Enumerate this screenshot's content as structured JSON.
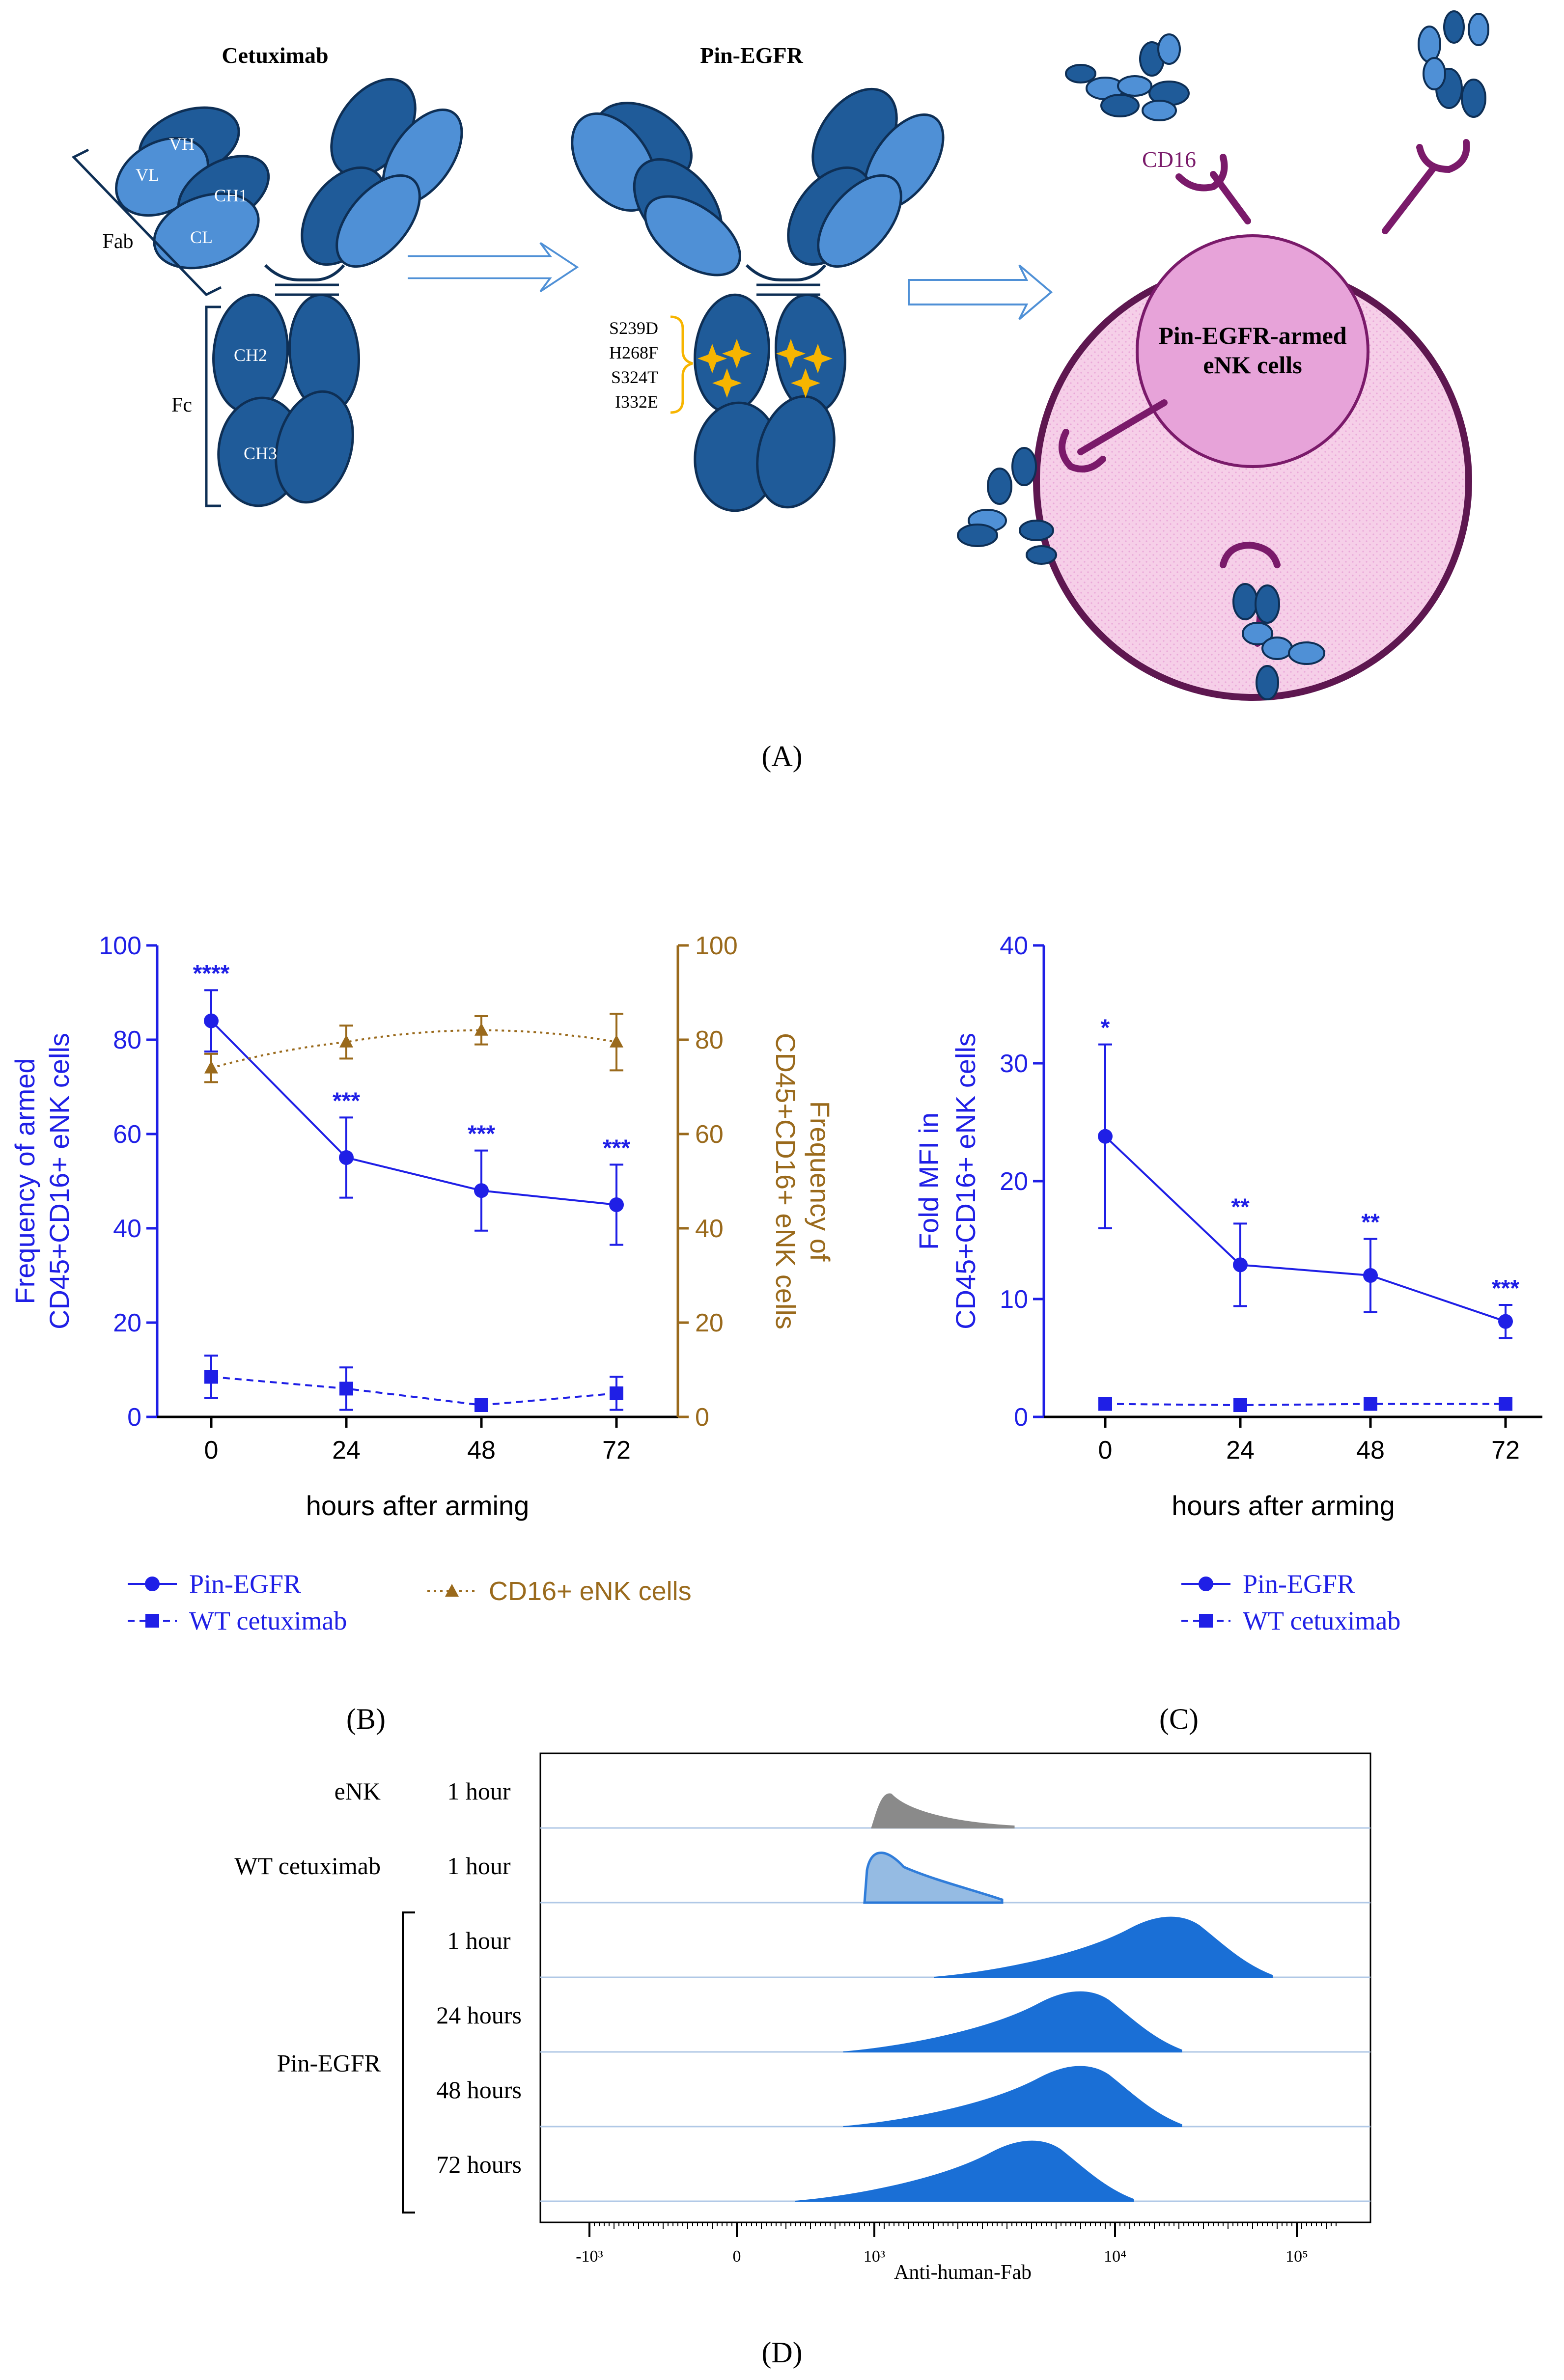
{
  "colors": {
    "blue": "#1f1fe6",
    "brown": "#9a6a1c",
    "ab_dark": "#1f5b99",
    "ab_light": "#4f90d6",
    "ab_outline": "#0e2f55",
    "purple": "#7a1a6a",
    "cell_outer": "#f6cfe8",
    "cell_inner": "#e7a3d9",
    "star": "#f7b500",
    "hist_gray": "#8a8a8a",
    "hist_lightblue": "#8ab4e0",
    "hist_blue": "#1a6fd6"
  },
  "panel_a": {
    "title_cetuximab": "Cetuximab",
    "title_pin": "Pin-EGFR",
    "domain_vh": "VH",
    "domain_vl": "VL",
    "domain_ch1": "CH1",
    "domain_cl": "CL",
    "domain_ch2": "CH2",
    "domain_ch3": "CH3",
    "bracket_fab": "Fab",
    "bracket_fc": "Fc",
    "mutations": [
      "S239D",
      "H268F",
      "S324T",
      "I332E"
    ],
    "receptor_label": "CD16",
    "cell_label_line1": "Pin-EGFR-armed",
    "cell_label_line2": "eNK cells",
    "panel_label": "(A)"
  },
  "chart_data": [
    {
      "panel": "(B)",
      "type": "line",
      "x": [
        0,
        24,
        48,
        72
      ],
      "xticks": [
        "0",
        "24",
        "48",
        "72"
      ],
      "xlabel": "hours after arming",
      "ylabel_left_line1": "Frequency of armed",
      "ylabel_left_line2": "CD45+CD16+ eNK cells",
      "ylabel_right_line1": "Frequency of",
      "ylabel_right_line2": "CD45+CD16+ eNK cells",
      "ylim": [
        0,
        100
      ],
      "yticks": [
        "0",
        "20",
        "40",
        "60",
        "80",
        "100"
      ],
      "series": [
        {
          "name": "Pin-EGFR",
          "axis": "left",
          "values": [
            84,
            55,
            48,
            45
          ],
          "err": [
            6.5,
            8.5,
            8.5,
            8.5
          ],
          "marker": "circle",
          "line": "solid",
          "significance": [
            "****",
            "***",
            "***",
            "***"
          ]
        },
        {
          "name": "WT cetuximab",
          "axis": "left",
          "values": [
            8.5,
            6,
            2.5,
            5
          ],
          "err": [
            4.5,
            4.5,
            0.8,
            3.5
          ],
          "marker": "square",
          "line": "dashed",
          "significance": [
            "",
            "",
            "",
            ""
          ]
        },
        {
          "name": "CD16+ eNK cells",
          "axis": "right",
          "values": [
            74,
            79.5,
            82,
            79.5
          ],
          "err": [
            3,
            3.5,
            3,
            6
          ],
          "marker": "triangle",
          "line": "dotted",
          "significance": [
            "",
            "",
            "",
            ""
          ]
        }
      ]
    },
    {
      "panel": "(C)",
      "type": "line",
      "x": [
        0,
        24,
        48,
        72
      ],
      "xticks": [
        "0",
        "24",
        "48",
        "72"
      ],
      "xlabel": "hours after arming",
      "ylabel_line1": "Fold MFI in",
      "ylabel_line2": "CD45+CD16+ eNK cells",
      "ylim": [
        0,
        40
      ],
      "yticks": [
        "0",
        "10",
        "20",
        "30",
        "40"
      ],
      "series": [
        {
          "name": "Pin-EGFR",
          "values": [
            23.8,
            12.9,
            12,
            8.1
          ],
          "err": [
            7.8,
            3.5,
            3.1,
            1.4
          ],
          "marker": "circle",
          "line": "solid",
          "significance": [
            "*",
            "**",
            "**",
            "***"
          ]
        },
        {
          "name": "WT cetuximab",
          "values": [
            1.1,
            1.0,
            1.1,
            1.1
          ],
          "err": [
            0,
            0,
            0,
            0
          ],
          "marker": "square",
          "line": "dashed",
          "significance": [
            "",
            "",
            "",
            ""
          ]
        }
      ]
    },
    {
      "panel": "(D)",
      "type": "area",
      "title": "",
      "xlabel": "Anti-human-Fab",
      "xticks": [
        "-10³",
        "0",
        "10³",
        "10⁴",
        "10⁵"
      ],
      "group_label": "Pin-EGFR",
      "rows": [
        {
          "sample": "eNK",
          "time": "1 hour",
          "color_key": "hist_gray",
          "mode_log10": 3.05,
          "peak": 0.95
        },
        {
          "sample": "WT cetuximab",
          "time": "1 hour",
          "color_key": "hist_lightblue",
          "mode_log10": 3.0,
          "peak": 1.0
        },
        {
          "sample": "",
          "time": "1 hour",
          "color_key": "hist_blue",
          "mode_log10": 4.3,
          "peak": 1.0
        },
        {
          "sample": "",
          "time": "24 hours",
          "color_key": "hist_blue",
          "mode_log10": 3.85,
          "peak": 1.0
        },
        {
          "sample": "",
          "time": "48 hours",
          "color_key": "hist_blue",
          "mode_log10": 3.85,
          "peak": 1.0
        },
        {
          "sample": "",
          "time": "72 hours",
          "color_key": "hist_blue",
          "mode_log10": 3.65,
          "peak": 1.0
        }
      ]
    }
  ]
}
